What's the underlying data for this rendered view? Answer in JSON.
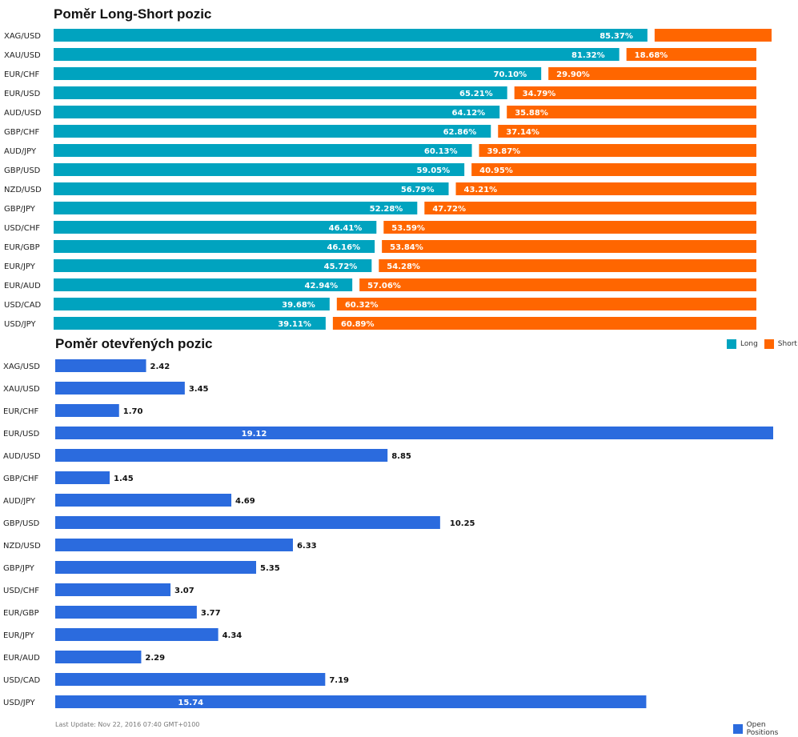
{
  "colors": {
    "long": "#00a3bf",
    "short": "#ff6600",
    "open": "#2b6bde"
  },
  "chart_data": [
    {
      "type": "bar",
      "orientation": "horizontal",
      "stacked": true,
      "title": "Poměr Long-Short pozic",
      "categories": [
        "XAG/USD",
        "XAU/USD",
        "EUR/CHF",
        "EUR/USD",
        "AUD/USD",
        "GBP/CHF",
        "AUD/JPY",
        "GBP/USD",
        "NZD/USD",
        "GBP/JPY",
        "USD/CHF",
        "EUR/GBP",
        "EUR/JPY",
        "EUR/AUD",
        "USD/CAD",
        "USD/JPY"
      ],
      "series": [
        {
          "name": "Long",
          "values": [
            85.37,
            81.32,
            70.1,
            65.21,
            64.12,
            62.86,
            60.13,
            59.05,
            56.79,
            52.28,
            46.41,
            46.16,
            45.72,
            42.94,
            39.68,
            39.11
          ],
          "labels": [
            "85.37%",
            "81.32%",
            "70.10%",
            "65.21%",
            "64.12%",
            "62.86%",
            "60.13%",
            "59.05%",
            "56.79%",
            "52.28%",
            "46.41%",
            "46.16%",
            "45.72%",
            "42.94%",
            "39.68%",
            "39.11%"
          ]
        },
        {
          "name": "Short",
          "values": [
            14.63,
            18.68,
            29.9,
            34.79,
            35.88,
            37.14,
            39.87,
            40.95,
            43.21,
            47.72,
            53.59,
            53.84,
            54.28,
            57.06,
            60.32,
            60.89
          ],
          "labels": [
            "",
            "18.68%",
            "29.90%",
            "34.79%",
            "35.88%",
            "37.14%",
            "39.87%",
            "40.95%",
            "43.21%",
            "47.72%",
            "53.59%",
            "53.84%",
            "54.28%",
            "57.06%",
            "60.32%",
            "60.89%"
          ]
        }
      ],
      "legend": "bottom-right"
    },
    {
      "type": "bar",
      "orientation": "horizontal",
      "title": "Poměr otevřených pozic",
      "categories": [
        "XAG/USD",
        "XAU/USD",
        "EUR/CHF",
        "EUR/USD",
        "AUD/USD",
        "GBP/CHF",
        "AUD/JPY",
        "GBP/USD",
        "NZD/USD",
        "GBP/JPY",
        "USD/CHF",
        "EUR/GBP",
        "EUR/JPY",
        "EUR/AUD",
        "USD/CAD",
        "USD/JPY"
      ],
      "series": [
        {
          "name": "Open Positions",
          "values": [
            2.42,
            3.45,
            1.7,
            19.12,
            8.85,
            1.45,
            4.69,
            10.25,
            6.33,
            5.35,
            3.07,
            3.77,
            4.34,
            2.29,
            7.19,
            15.74
          ],
          "labels": [
            "2.42",
            "3.45",
            "1.70",
            "19.12",
            "8.85",
            "1.45",
            "4.69",
            "10.25",
            "6.33",
            "5.35",
            "3.07",
            "3.77",
            "4.34",
            "2.29",
            "7.19",
            "15.74"
          ]
        }
      ],
      "legend": "bottom-right"
    }
  ],
  "footer": {
    "last_update": "Last Update: Nov 22, 2016 07:40 GMT+0100"
  }
}
